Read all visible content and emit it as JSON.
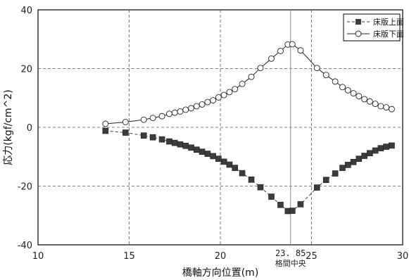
{
  "chart_data": {
    "type": "line",
    "title": "",
    "xlabel": "橋軸方向位置(m)",
    "ylabel": "応力(kgf/cm^2)",
    "xlim": [
      10,
      30
    ],
    "ylim": [
      -40,
      40
    ],
    "xticks": [
      10,
      15,
      20,
      25,
      30
    ],
    "yticks": [
      -40,
      -20,
      0,
      20,
      40
    ],
    "grid": "dashed",
    "legend_position": "top-right",
    "annotation": {
      "x": 23.85,
      "value_label": "23. 85",
      "label": "格間中央"
    },
    "series": [
      {
        "name": "床版上面",
        "line_style": "dashed",
        "marker": "filled-square",
        "color": "#3c3c3c",
        "x": [
          13.7,
          14.8,
          15.8,
          16.3,
          16.8,
          17.2,
          17.5,
          17.8,
          18.1,
          18.4,
          18.7,
          19.0,
          19.3,
          19.6,
          19.9,
          20.2,
          20.5,
          20.8,
          21.2,
          21.7,
          22.2,
          22.8,
          23.3,
          23.7,
          23.95,
          24.4,
          25.3,
          25.8,
          26.3,
          26.7,
          27.0,
          27.3,
          27.6,
          27.9,
          28.2,
          28.5,
          28.8,
          29.1,
          29.4
        ],
        "y": [
          -1.2,
          -1.8,
          -2.8,
          -3.4,
          -4.1,
          -4.8,
          -5.3,
          -5.8,
          -6.3,
          -6.9,
          -7.6,
          -8.3,
          -9.0,
          -9.8,
          -10.7,
          -11.7,
          -12.7,
          -13.8,
          -15.6,
          -17.8,
          -20.4,
          -23.6,
          -26.4,
          -28.5,
          -28.4,
          -26.2,
          -20.5,
          -17.9,
          -15.7,
          -13.8,
          -12.8,
          -11.8,
          -10.7,
          -9.7,
          -8.8,
          -7.9,
          -7.1,
          -6.6,
          -6.2
        ]
      },
      {
        "name": "床版下面",
        "line_style": "solid",
        "marker": "open-circle",
        "color": "#222222",
        "x": [
          13.7,
          14.8,
          15.8,
          16.3,
          16.8,
          17.2,
          17.5,
          17.8,
          18.1,
          18.4,
          18.7,
          19.0,
          19.3,
          19.6,
          19.9,
          20.2,
          20.5,
          20.8,
          21.2,
          21.7,
          22.2,
          22.8,
          23.3,
          23.7,
          23.95,
          24.4,
          25.3,
          25.8,
          26.3,
          26.7,
          27.0,
          27.3,
          27.6,
          27.9,
          28.2,
          28.5,
          28.8,
          29.1,
          29.4
        ],
        "y": [
          1.2,
          1.8,
          2.6,
          3.2,
          3.8,
          4.6,
          5.0,
          5.4,
          6.0,
          6.5,
          7.2,
          7.8,
          8.6,
          9.2,
          10.2,
          11.0,
          12.0,
          13.0,
          14.8,
          17.2,
          20.2,
          23.4,
          26.0,
          28.2,
          28.3,
          26.2,
          20.2,
          17.8,
          15.6,
          13.7,
          12.6,
          11.6,
          10.6,
          9.6,
          8.8,
          8.0,
          7.2,
          6.8,
          6.2
        ]
      }
    ]
  }
}
